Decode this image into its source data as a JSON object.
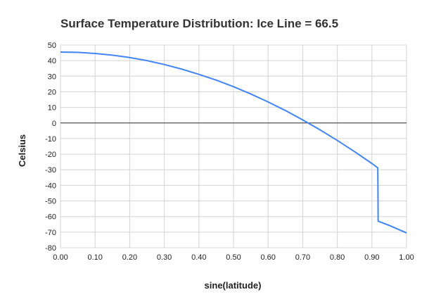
{
  "chart_data": {
    "type": "line",
    "title": "Surface Temperature Distribution: Ice Line = 66.5",
    "xlabel": "sine(latitude)",
    "ylabel": "Celsius",
    "xlim": [
      0,
      1
    ],
    "ylim": [
      -80,
      50
    ],
    "x_ticks": [
      "0.00",
      "0.10",
      "0.20",
      "0.30",
      "0.40",
      "0.50",
      "0.60",
      "0.70",
      "0.80",
      "0.90",
      "1.00"
    ],
    "y_ticks": [
      "50",
      "40",
      "30",
      "20",
      "10",
      "0",
      "-10",
      "-20",
      "-30",
      "-40",
      "-50",
      "-60",
      "-70",
      "-80"
    ],
    "grid": true,
    "legend": "none",
    "zero_line": true,
    "series_color": "#4285f4",
    "series": [
      {
        "x": [
          0.0,
          0.05,
          0.1,
          0.15,
          0.2,
          0.25,
          0.3,
          0.35,
          0.4,
          0.45,
          0.5,
          0.55,
          0.6,
          0.65,
          0.7,
          0.75,
          0.8,
          0.85,
          0.9,
          0.917,
          0.918,
          0.95,
          1.0
        ],
        "y": [
          45.5,
          45.3,
          44.6,
          43.5,
          42.0,
          40.0,
          37.5,
          34.6,
          31.2,
          27.5,
          23.3,
          18.6,
          13.5,
          8.0,
          2.0,
          -4.4,
          -11.2,
          -18.4,
          -26.0,
          -28.8,
          -63.0,
          -65.7,
          -70.5
        ]
      }
    ]
  }
}
